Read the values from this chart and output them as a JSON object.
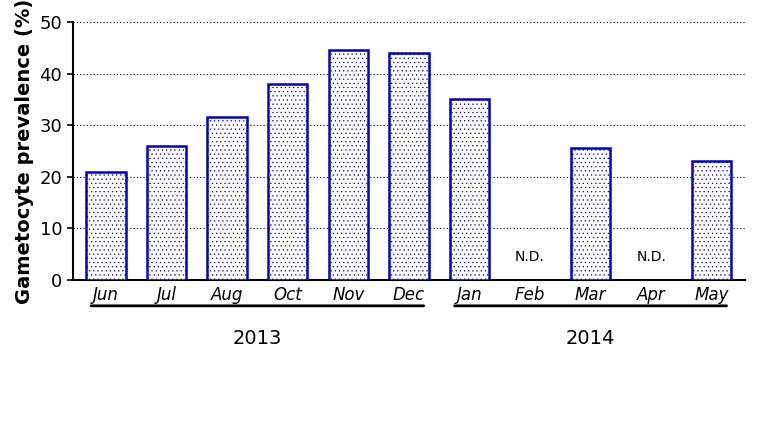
{
  "categories": [
    "Jun",
    "Jul",
    "Aug",
    "Oct",
    "Nov",
    "Dec",
    "Jan",
    "Feb",
    "Mar",
    "Apr",
    "May"
  ],
  "values": [
    21,
    26,
    31.5,
    38,
    44.5,
    44,
    35,
    0,
    25.5,
    0,
    23
  ],
  "nd_indices": [
    7,
    9
  ],
  "bar_edge_color": "#0000CC",
  "hatch_pattern": "....",
  "hatch_color": "#0000CC",
  "fill_color": "white",
  "ylabel": "Gametocyte prevalence (%)",
  "ylim": [
    0,
    50
  ],
  "yticks": [
    0,
    10,
    20,
    30,
    40,
    50
  ],
  "grid_color": "black",
  "grid_linestyle": "dotted",
  "grid_linewidth": 0.8,
  "year_labels": [
    "2013",
    "2014"
  ],
  "year_2013_indices": [
    0,
    5
  ],
  "year_2014_indices": [
    6,
    10
  ],
  "bar_width": 0.65,
  "nd_label": "N.D.",
  "nd_fontsize": 10,
  "tick_fontsize": 12,
  "ylabel_fontsize": 14,
  "year_fontsize": 14,
  "ytick_fontsize": 13
}
